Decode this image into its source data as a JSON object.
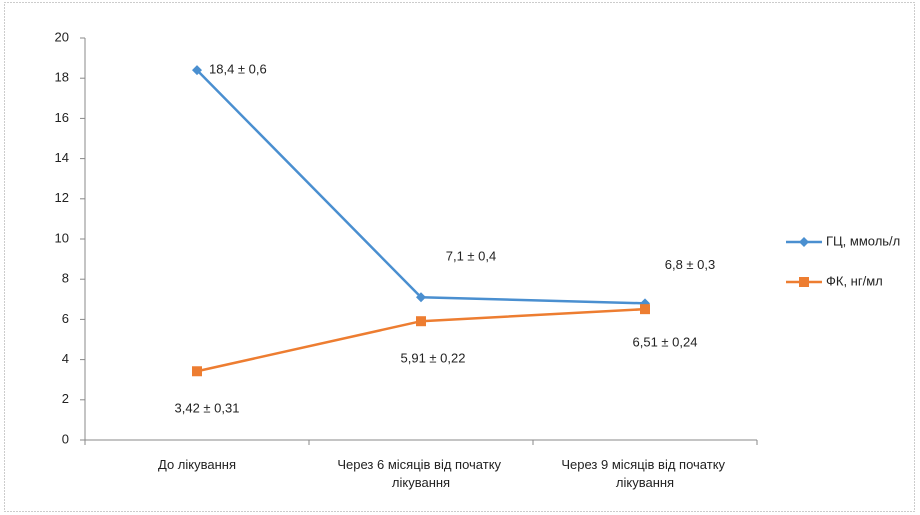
{
  "chart_data": {
    "type": "line",
    "categories": [
      "До лікування",
      "Через 6 місяців від початку лікування",
      "Через 9 місяців від початку лікування"
    ],
    "series": [
      {
        "name": "ГЦ, ммоль/л",
        "color": "#4a8fd0",
        "marker": "diamond",
        "values": [
          18.4,
          7.1,
          6.8
        ],
        "value_labels": [
          "18,4 ± 0,6",
          "7,1 ± 0,4",
          "6,8 ± 0,3"
        ]
      },
      {
        "name": "ФК, нг/мл",
        "color": "#ed7d31",
        "marker": "square",
        "values": [
          3.42,
          5.91,
          6.51
        ],
        "value_labels": [
          "3,42 ± 0,31",
          "5,91 ± 0,22",
          "6,51 ± 0,24"
        ]
      }
    ],
    "ylim": [
      0,
      20
    ],
    "yticks": [
      0,
      2,
      4,
      6,
      8,
      10,
      12,
      14,
      16,
      18,
      20
    ],
    "grid": false,
    "legend": "right"
  }
}
